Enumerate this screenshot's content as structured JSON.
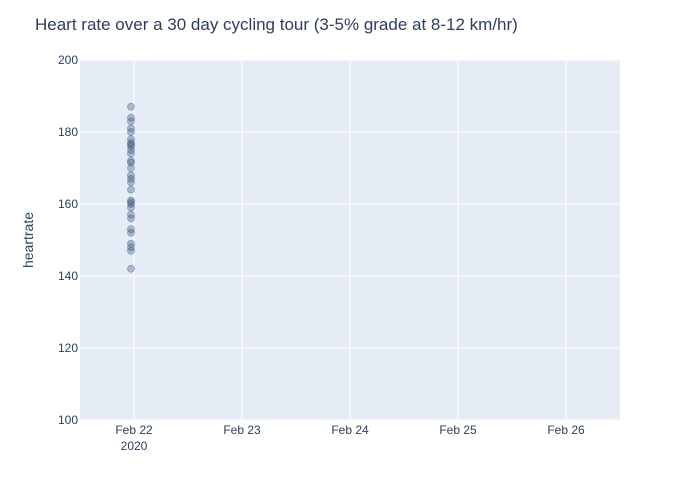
{
  "chart_data": {
    "type": "scatter",
    "title": "Heart rate over a 30 day cycling tour (3-5% grade at 8-12 km/hr)",
    "xlabel": "",
    "ylabel": "heartrate",
    "ylim": [
      100,
      200
    ],
    "xlim": [
      "2020-02-21 12:00",
      "2020-02-26 12:00"
    ],
    "x_ticks": [
      {
        "date": "2020-02-22",
        "label": "Feb 22",
        "sublabel": "2020"
      },
      {
        "date": "2020-02-23",
        "label": "Feb 23",
        "sublabel": ""
      },
      {
        "date": "2020-02-24",
        "label": "Feb 24",
        "sublabel": ""
      },
      {
        "date": "2020-02-25",
        "label": "Feb 25",
        "sublabel": ""
      },
      {
        "date": "2020-02-26",
        "label": "Feb 26",
        "sublabel": ""
      }
    ],
    "y_ticks": [
      100,
      120,
      140,
      160,
      180,
      200
    ],
    "grid": true,
    "marker_color": "#3d5a80",
    "plot_bg": "#e5ecf6",
    "points": [
      {
        "x": "2020-02-21 23:20",
        "y": 187
      },
      {
        "x": "2020-02-21 23:20",
        "y": 184
      },
      {
        "x": "2020-02-21 23:20",
        "y": 183
      },
      {
        "x": "2020-02-21 23:20",
        "y": 181
      },
      {
        "x": "2020-02-21 23:20",
        "y": 180
      },
      {
        "x": "2020-02-21 23:20",
        "y": 178
      },
      {
        "x": "2020-02-21 23:20",
        "y": 177
      },
      {
        "x": "2020-02-21 23:20",
        "y": 176.5
      },
      {
        "x": "2020-02-21 23:20",
        "y": 176
      },
      {
        "x": "2020-02-21 23:20",
        "y": 175
      },
      {
        "x": "2020-02-21 23:20",
        "y": 174
      },
      {
        "x": "2020-02-21 23:20",
        "y": 172
      },
      {
        "x": "2020-02-21 23:20",
        "y": 171.5
      },
      {
        "x": "2020-02-21 23:20",
        "y": 170
      },
      {
        "x": "2020-02-21 23:20",
        "y": 168
      },
      {
        "x": "2020-02-21 23:20",
        "y": 167
      },
      {
        "x": "2020-02-21 23:20",
        "y": 166
      },
      {
        "x": "2020-02-21 23:20",
        "y": 164
      },
      {
        "x": "2020-02-21 23:20",
        "y": 161
      },
      {
        "x": "2020-02-21 23:20",
        "y": 160.5
      },
      {
        "x": "2020-02-21 23:20",
        "y": 160
      },
      {
        "x": "2020-02-21 23:20",
        "y": 159
      },
      {
        "x": "2020-02-21 23:20",
        "y": 157
      },
      {
        "x": "2020-02-21 23:20",
        "y": 156
      },
      {
        "x": "2020-02-21 23:20",
        "y": 153
      },
      {
        "x": "2020-02-21 23:20",
        "y": 152
      },
      {
        "x": "2020-02-21 23:20",
        "y": 149
      },
      {
        "x": "2020-02-21 23:20",
        "y": 148
      },
      {
        "x": "2020-02-21 23:20",
        "y": 147
      },
      {
        "x": "2020-02-21 23:20",
        "y": 142
      }
    ]
  }
}
